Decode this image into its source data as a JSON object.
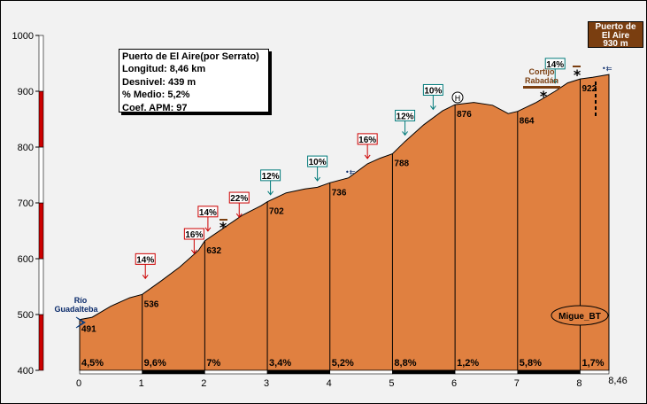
{
  "info": {
    "title": "Puerto de El Aire(por Serrato)",
    "length": "Longitud: 8,46 km",
    "gain": "Desnivel: 439 m",
    "avg_grade": "% Medio: 5,2%",
    "coef": "Coef. APM: 97"
  },
  "summit_sign": {
    "line1": "Puerto de",
    "line2": "El Aire",
    "line3": "930 m"
  },
  "start_place": {
    "line1": "Río",
    "line2": "Guadalteba"
  },
  "place_cortijo": {
    "line1": "Cortijo",
    "line2": "Rabadán"
  },
  "author": "Migue_BT",
  "colors": {
    "fill": "#e08040",
    "axis_red": "#cc0000",
    "grade_red": "#cc0000",
    "grade_teal": "#007a7a",
    "summit_bg": "#7a3e10"
  },
  "chart_data": {
    "type": "area",
    "title": "Puerto de El Aire(por Serrato)",
    "xlabel": "",
    "ylabel": "",
    "xlim": [
      0,
      8.46
    ],
    "ylim": [
      400,
      1000
    ],
    "y_ticks": [
      "400",
      "500",
      "600",
      "700",
      "800",
      "900",
      "1000"
    ],
    "x_ticks": [
      "0",
      "1",
      "2",
      "3",
      "4",
      "5",
      "6",
      "7",
      "8",
      "8,46"
    ],
    "profile": [
      [
        0,
        491
      ],
      [
        0.2,
        495
      ],
      [
        0.5,
        515
      ],
      [
        0.8,
        530
      ],
      [
        1,
        536
      ],
      [
        1.3,
        560
      ],
      [
        1.6,
        585
      ],
      [
        1.9,
        615
      ],
      [
        2,
        632
      ],
      [
        2.3,
        655
      ],
      [
        2.6,
        678
      ],
      [
        2.9,
        695
      ],
      [
        3,
        702
      ],
      [
        3.3,
        718
      ],
      [
        3.6,
        725
      ],
      [
        3.8,
        728
      ],
      [
        4,
        736
      ],
      [
        4.3,
        745
      ],
      [
        4.6,
        770
      ],
      [
        4.8,
        780
      ],
      [
        5,
        788
      ],
      [
        5.2,
        810
      ],
      [
        5.5,
        840
      ],
      [
        5.8,
        865
      ],
      [
        6,
        876
      ],
      [
        6.3,
        880
      ],
      [
        6.6,
        875
      ],
      [
        6.85,
        860
      ],
      [
        7,
        864
      ],
      [
        7.3,
        880
      ],
      [
        7.6,
        900
      ],
      [
        7.8,
        915
      ],
      [
        8,
        922
      ],
      [
        8.2,
        925
      ],
      [
        8.46,
        930
      ]
    ],
    "km_labels": [
      {
        "x": 0,
        "y": 491,
        "label": "491"
      },
      {
        "x": 1,
        "y": 536,
        "label": "536"
      },
      {
        "x": 2,
        "y": 632,
        "label": "632"
      },
      {
        "x": 3,
        "y": 702,
        "label": "702"
      },
      {
        "x": 4,
        "y": 736,
        "label": "736"
      },
      {
        "x": 5,
        "y": 788,
        "label": "788"
      },
      {
        "x": 6,
        "y": 876,
        "label": "876"
      },
      {
        "x": 7,
        "y": 864,
        "label": "864"
      },
      {
        "x": 8,
        "y": 922,
        "label": "922"
      }
    ],
    "segment_grades": [
      "4,5%",
      "9,6%",
      "7%",
      "3,4%",
      "5,2%",
      "8,8%",
      "1,2%",
      "5,8%",
      "1,7%"
    ],
    "max_grade_flags": [
      {
        "x": 1.05,
        "y": 555,
        "label": "14%",
        "color": "red"
      },
      {
        "x": 1.83,
        "y": 600,
        "label": "16%",
        "color": "red"
      },
      {
        "x": 2.05,
        "y": 640,
        "label": "14%",
        "color": "red"
      },
      {
        "x": 2.55,
        "y": 665,
        "label": "22%",
        "color": "red"
      },
      {
        "x": 3.05,
        "y": 705,
        "label": "12%",
        "color": "teal"
      },
      {
        "x": 3.8,
        "y": 730,
        "label": "10%",
        "color": "teal"
      },
      {
        "x": 4.6,
        "y": 770,
        "label": "16%",
        "color": "red"
      },
      {
        "x": 5.2,
        "y": 812,
        "label": "12%",
        "color": "teal"
      },
      {
        "x": 5.65,
        "y": 858,
        "label": "10%",
        "color": "teal"
      },
      {
        "x": 7.6,
        "y": 905,
        "label": "14%",
        "color": "teal"
      }
    ]
  }
}
